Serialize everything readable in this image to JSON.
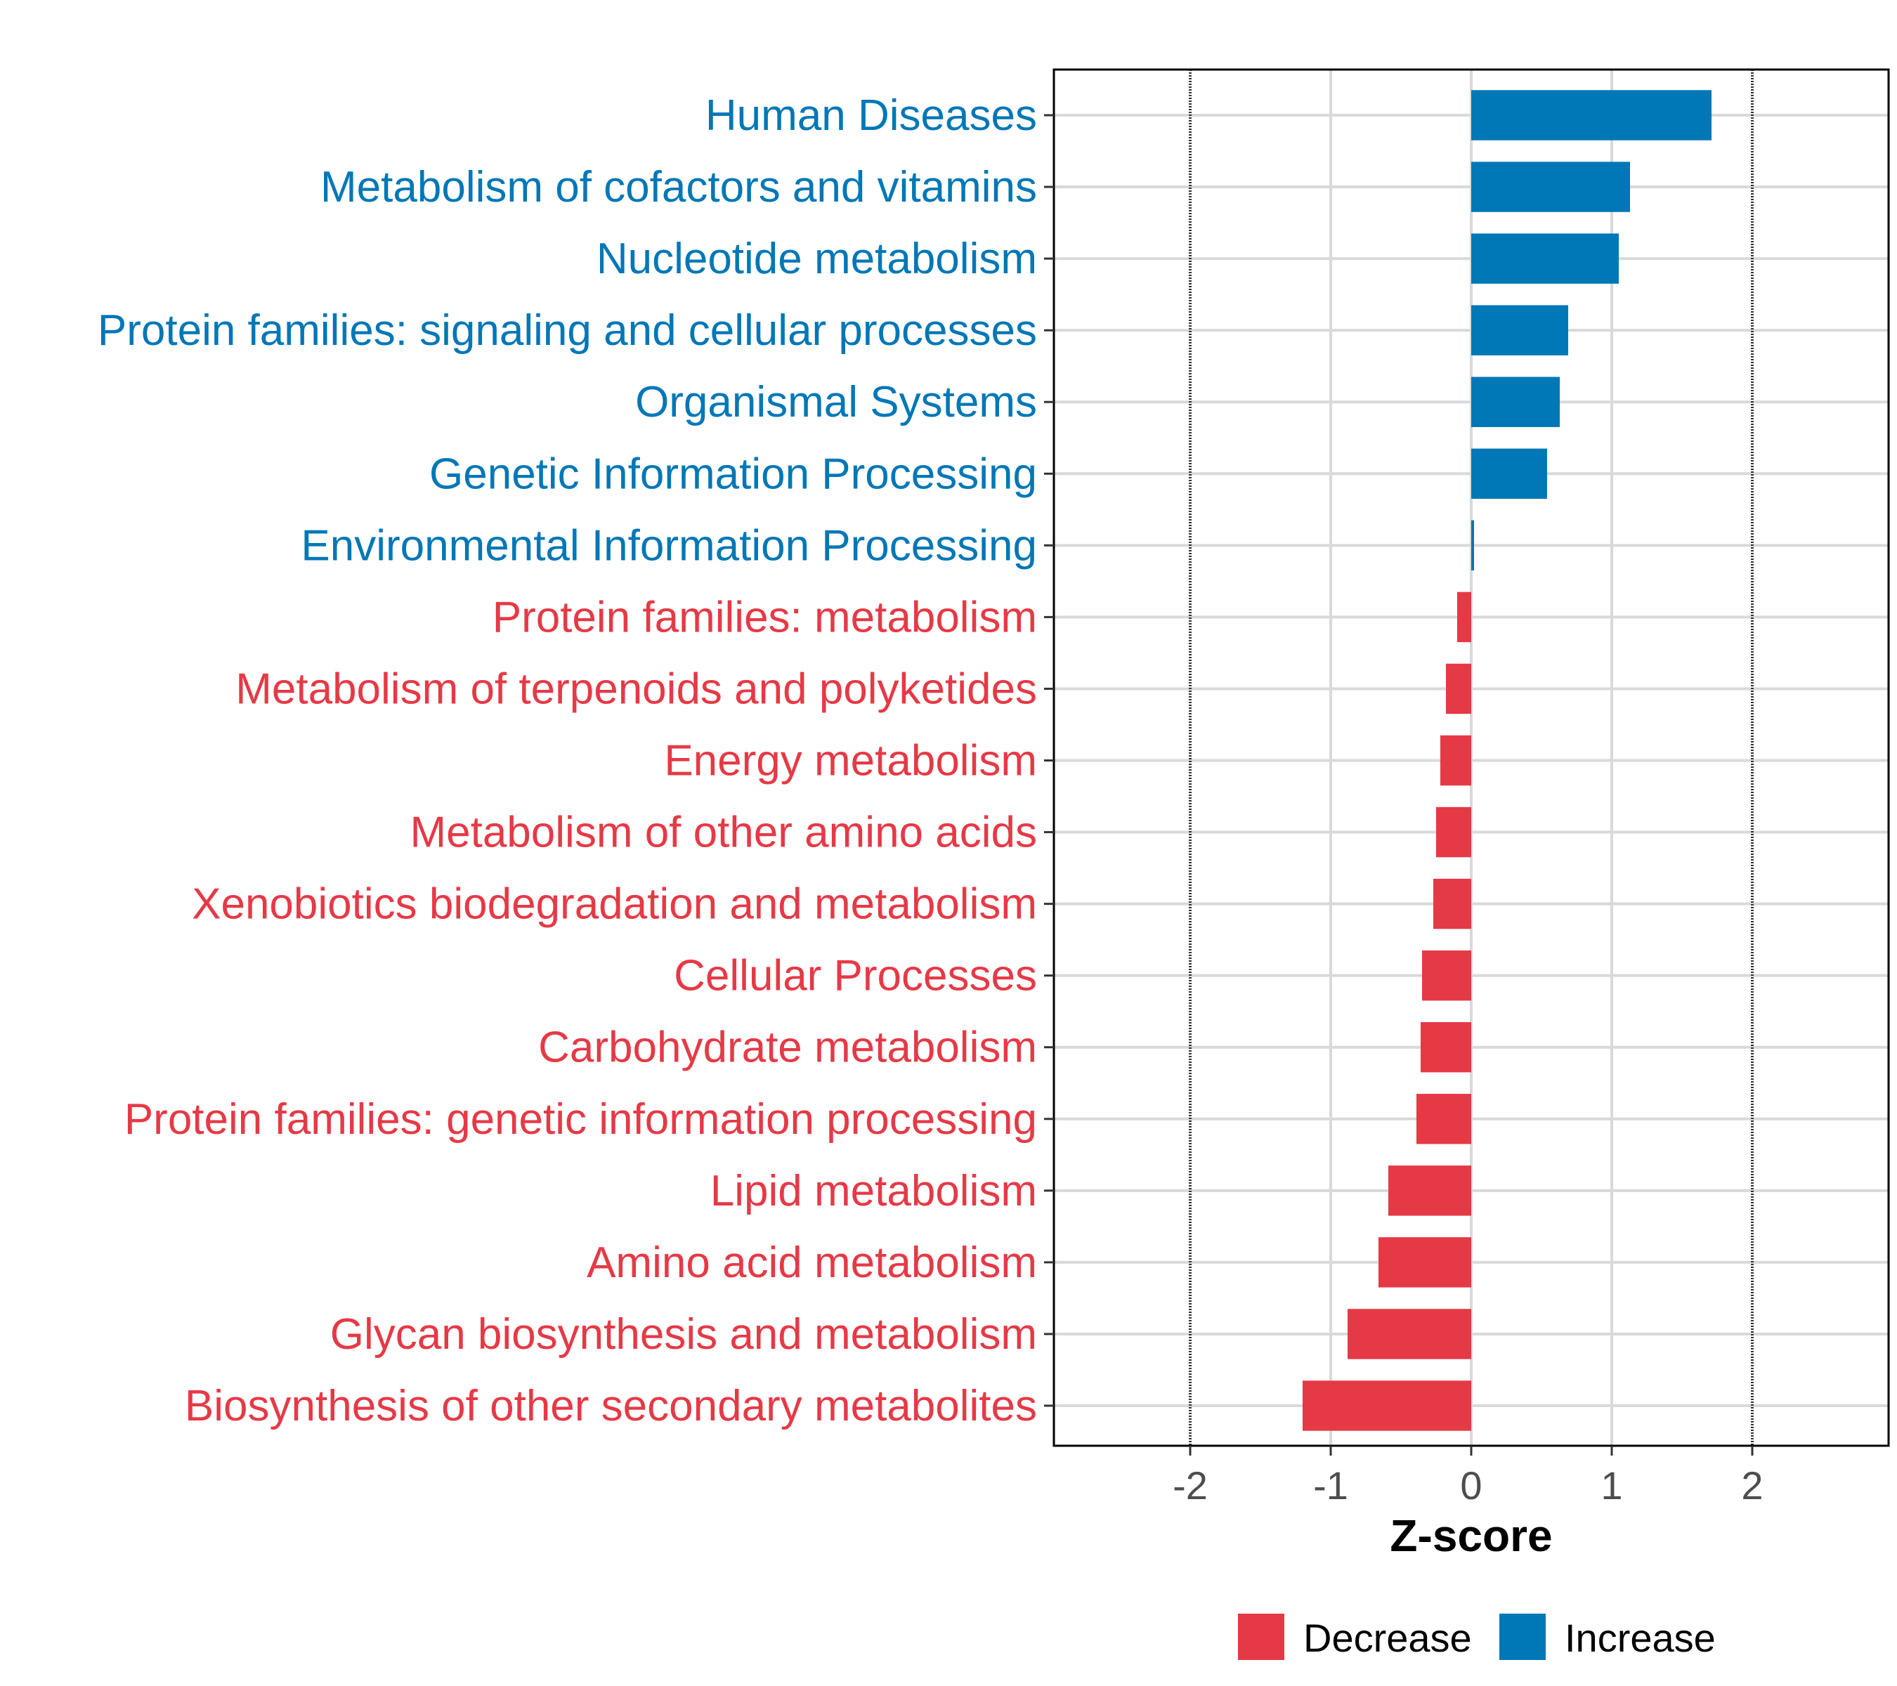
{
  "chart_data": {
    "type": "bar",
    "orientation": "horizontal",
    "title": "",
    "xlabel": "Z-score",
    "ylabel": "",
    "xlim": [
      -2.97,
      2.97
    ],
    "xticks": [
      -2,
      -1,
      0,
      1,
      2
    ],
    "xtick_labels": [
      "-2",
      "-1",
      "0",
      "1",
      "2"
    ],
    "reference_lines": [
      -2,
      2
    ],
    "grid": true,
    "legend_position": "bottom",
    "colors": {
      "Decrease": "#E63946",
      "Increase": "#0077B6"
    },
    "legend": [
      {
        "label": "Decrease",
        "color": "#E63946"
      },
      {
        "label": "Increase",
        "color": "#0077B6"
      }
    ],
    "categories": [
      "Human Diseases",
      "Metabolism of cofactors and vitamins",
      "Nucleotide metabolism",
      "Protein families: signaling and cellular processes",
      "Organismal Systems",
      "Genetic Information Processing",
      "Environmental Information Processing",
      "Protein families: metabolism",
      "Metabolism of terpenoids and polyketides",
      "Energy metabolism",
      "Metabolism of other amino acids",
      "Xenobiotics biodegradation and metabolism",
      "Cellular Processes",
      "Carbohydrate metabolism",
      "Protein families: genetic information processing",
      "Lipid metabolism",
      "Amino acid metabolism",
      "Glycan biosynthesis and metabolism",
      "Biosynthesis of other secondary metabolites"
    ],
    "values": [
      1.71,
      1.13,
      1.05,
      0.69,
      0.63,
      0.54,
      0.02,
      -0.1,
      -0.18,
      -0.22,
      -0.25,
      -0.27,
      -0.35,
      -0.36,
      -0.39,
      -0.59,
      -0.66,
      -0.88,
      -1.2
    ],
    "groups": [
      "Increase",
      "Increase",
      "Increase",
      "Increase",
      "Increase",
      "Increase",
      "Increase",
      "Decrease",
      "Decrease",
      "Decrease",
      "Decrease",
      "Decrease",
      "Decrease",
      "Decrease",
      "Decrease",
      "Decrease",
      "Decrease",
      "Decrease",
      "Decrease"
    ]
  }
}
